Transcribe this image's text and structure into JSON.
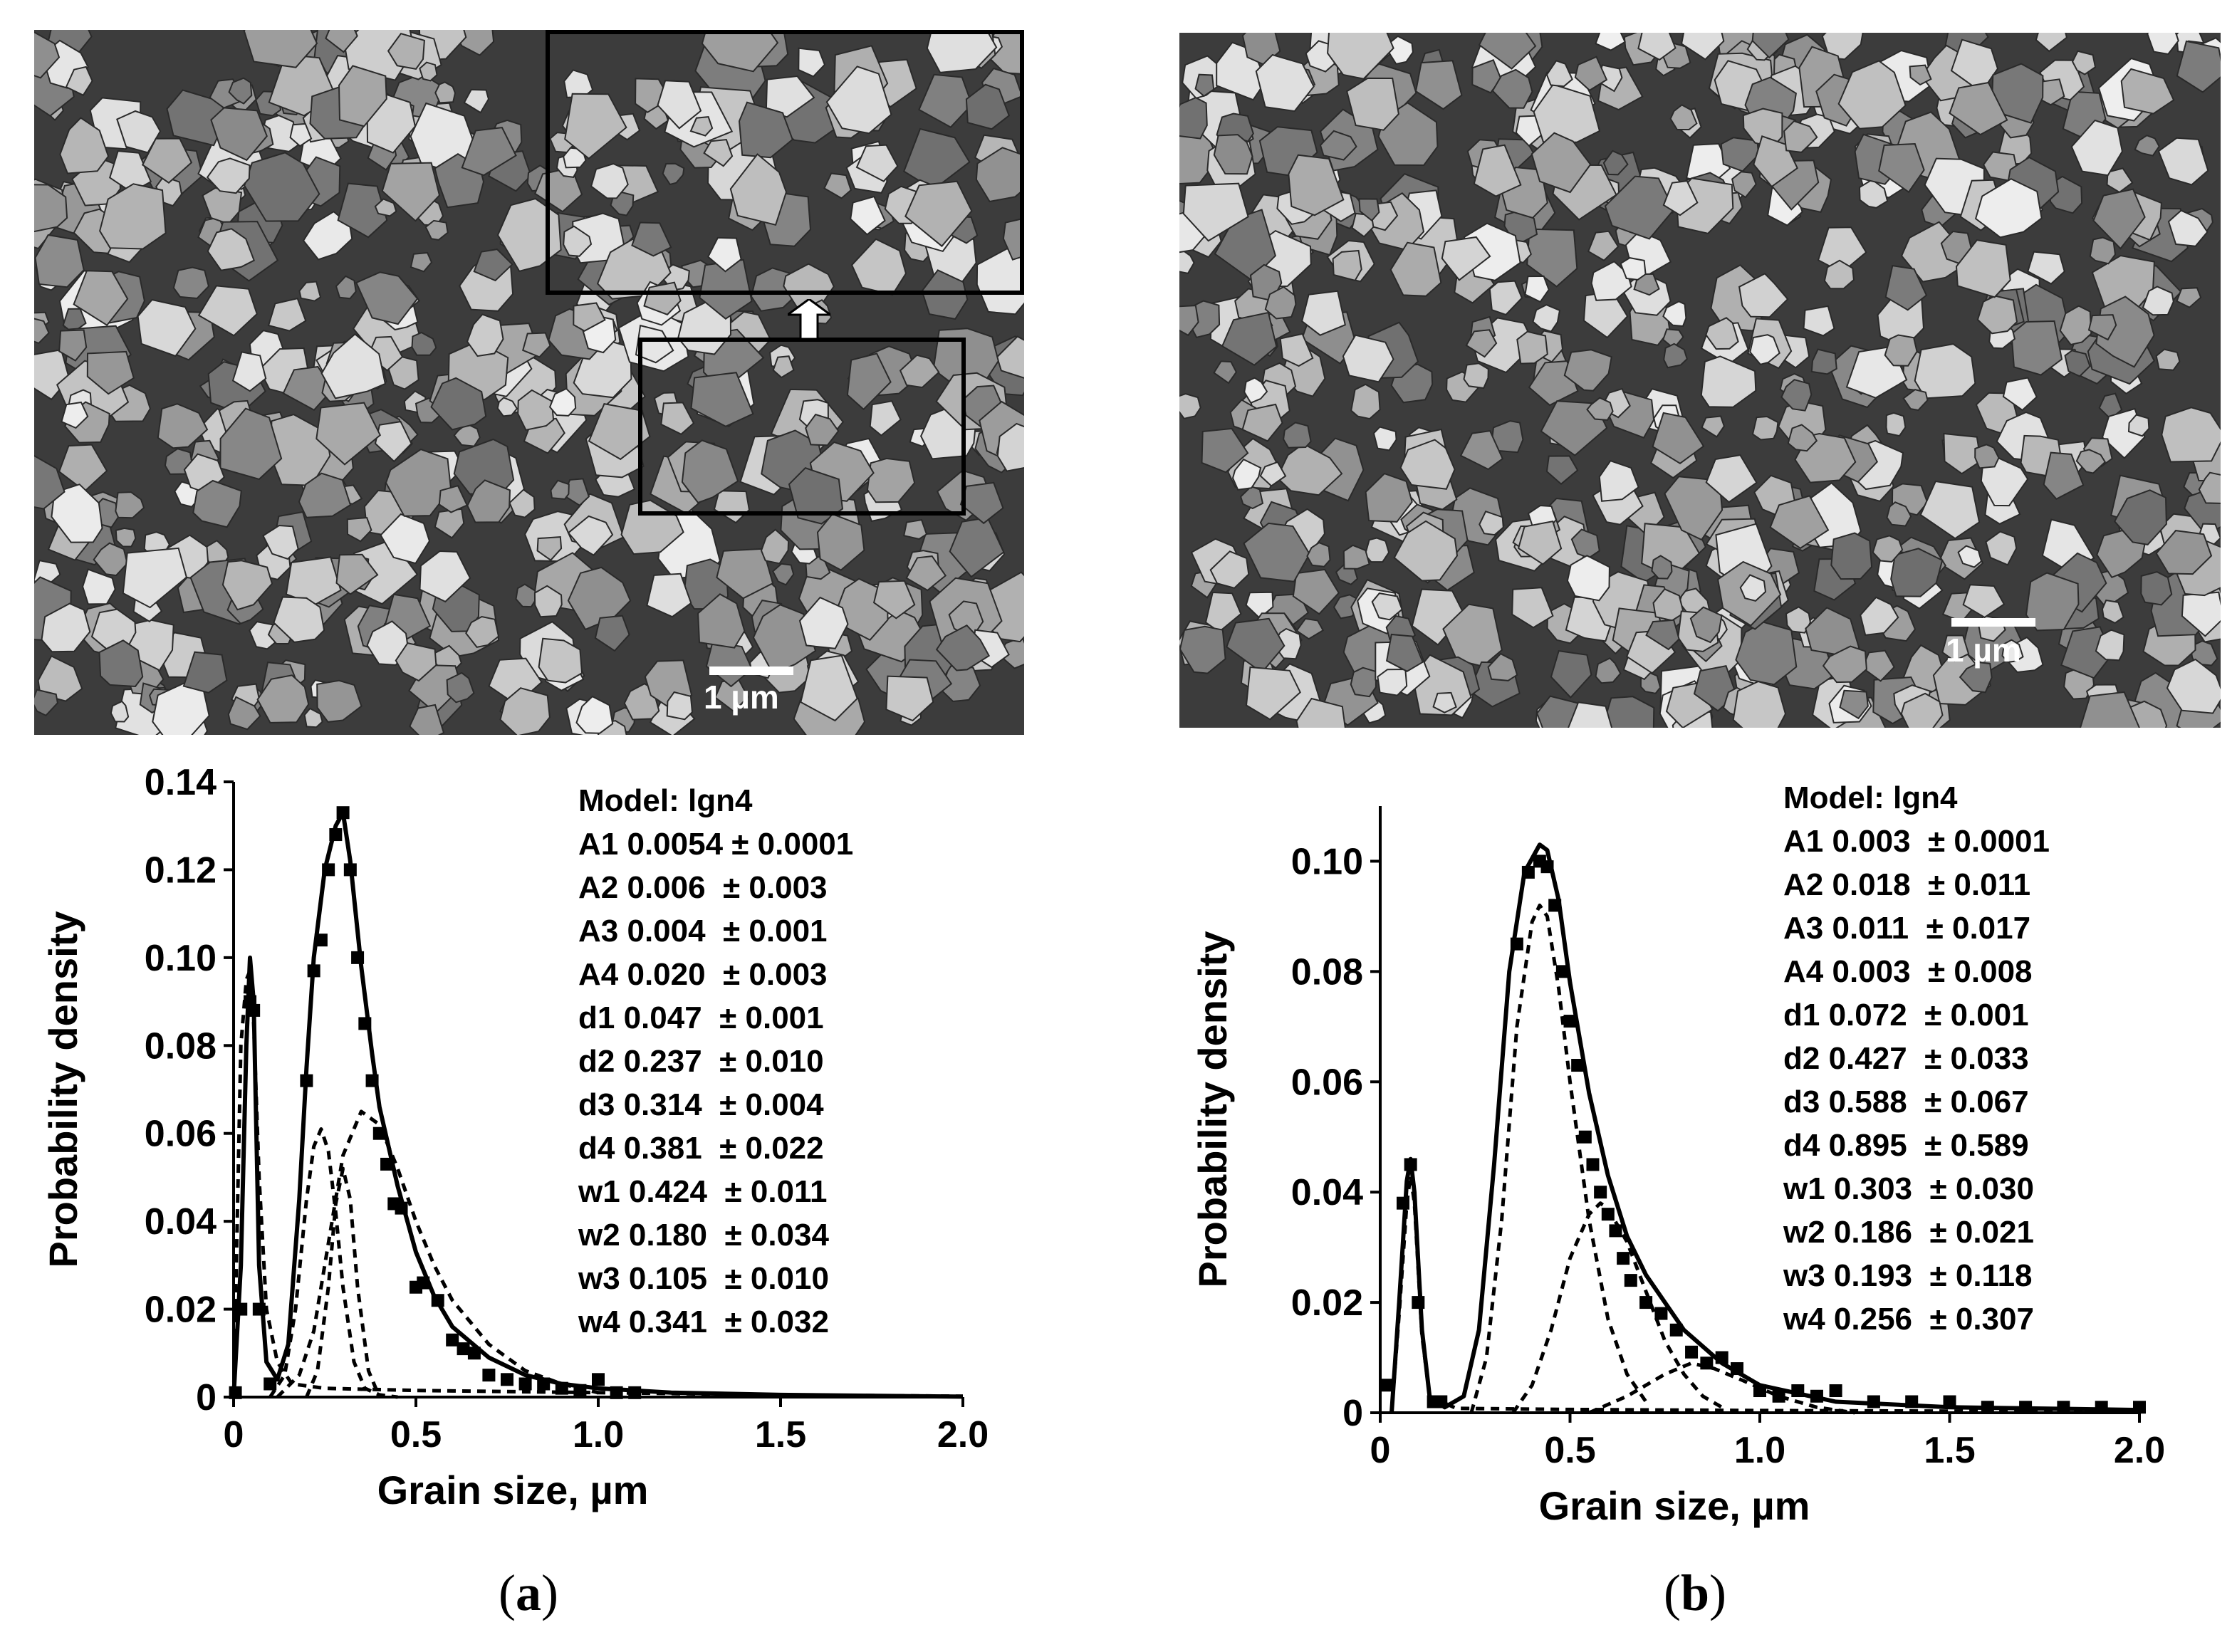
{
  "panels": [
    {
      "id": "a",
      "caption_letter": "a",
      "scale_bar_label": "1 µm",
      "model_params": [
        "Model: lgn4",
        "A1 0.0054 ± 0.0001",
        "A2 0.006  ± 0.003",
        "A3 0.004  ± 0.001",
        "A4 0.020  ± 0.003",
        "d1 0.047  ± 0.001",
        "d2 0.237  ± 0.010",
        "d3 0.314  ± 0.004",
        "d4 0.381  ± 0.022",
        "w1 0.424  ± 0.011",
        "w2 0.180  ± 0.034",
        "w3 0.105  ± 0.010",
        "w4 0.341  ± 0.032"
      ]
    },
    {
      "id": "b",
      "caption_letter": "b",
      "scale_bar_label": "1 µm",
      "model_params": [
        "Model: lgn4",
        "A1 0.003  ± 0.0001",
        "A2 0.018  ± 0.011",
        "A3 0.011  ± 0.017",
        "A4 0.003  ± 0.008",
        "d1 0.072  ± 0.001",
        "d2 0.427  ± 0.033",
        "d3 0.588  ± 0.067",
        "d4 0.895  ± 0.589",
        "w1 0.303  ± 0.030",
        "w2 0.186  ± 0.021",
        "w3 0.193  ± 0.118",
        "w4 0.256  ± 0.307"
      ]
    }
  ],
  "chart_data": [
    {
      "type": "scatter",
      "panel": "a",
      "xlabel": "Grain size, µm",
      "ylabel": "Probability density",
      "xlim": [
        0,
        2.0
      ],
      "ylim": [
        0,
        0.14
      ],
      "xticks": [
        0,
        0.5,
        1.0,
        1.5,
        2.0
      ],
      "xtick_labels": [
        "0",
        "0.5",
        "1.0",
        "1.5",
        "2.0"
      ],
      "yticks": [
        0,
        0.02,
        0.04,
        0.06,
        0.08,
        0.1,
        0.12,
        0.14
      ],
      "ytick_labels": [
        "0",
        "0.02",
        "0.04",
        "0.06",
        "0.08",
        "0.10",
        "0.12",
        "0.14"
      ],
      "series": [
        {
          "style": "squares",
          "x": [
            0.005,
            0.02,
            0.045,
            0.055,
            0.07,
            0.1,
            0.2,
            0.22,
            0.24,
            0.26,
            0.28,
            0.3,
            0.32,
            0.34,
            0.36,
            0.38,
            0.4,
            0.42,
            0.44,
            0.46,
            0.5,
            0.52,
            0.56,
            0.6,
            0.63,
            0.66,
            0.7,
            0.75,
            0.8,
            0.85,
            0.9,
            0.95,
            1.0,
            1.05,
            1.1
          ],
          "y": [
            0.001,
            0.02,
            0.09,
            0.088,
            0.02,
            0.003,
            0.072,
            0.097,
            0.104,
            0.12,
            0.128,
            0.133,
            0.12,
            0.1,
            0.085,
            0.072,
            0.06,
            0.053,
            0.044,
            0.043,
            0.025,
            0.026,
            0.022,
            0.013,
            0.011,
            0.01,
            0.005,
            0.004,
            0.003,
            0.003,
            0.002,
            0.0015,
            0.004,
            0.001,
            0.001
          ]
        },
        {
          "style": "solid",
          "x": [
            0,
            0.02,
            0.035,
            0.045,
            0.055,
            0.07,
            0.09,
            0.12,
            0.15,
            0.18,
            0.2,
            0.22,
            0.25,
            0.28,
            0.3,
            0.32,
            0.35,
            0.38,
            0.4,
            0.45,
            0.5,
            0.55,
            0.6,
            0.7,
            0.8,
            0.9,
            1.0,
            1.2,
            1.5,
            2.0
          ],
          "y": [
            0.0,
            0.03,
            0.08,
            0.1,
            0.09,
            0.03,
            0.008,
            0.004,
            0.012,
            0.045,
            0.075,
            0.1,
            0.12,
            0.13,
            0.133,
            0.122,
            0.098,
            0.078,
            0.066,
            0.048,
            0.033,
            0.023,
            0.016,
            0.009,
            0.005,
            0.003,
            0.002,
            0.001,
            0.0005,
            0.0001
          ]
        },
        {
          "style": "dashed",
          "x": [
            0,
            0.01,
            0.02,
            0.035,
            0.045,
            0.055,
            0.07,
            0.09,
            0.12,
            0.16,
            0.25,
            0.5,
            1.0,
            1.5,
            2.0
          ],
          "y": [
            0.0,
            0.04,
            0.08,
            0.095,
            0.097,
            0.085,
            0.05,
            0.02,
            0.008,
            0.003,
            0.002,
            0.0015,
            0.001,
            0.0005,
            0.0002
          ]
        },
        {
          "style": "dashed",
          "x": [
            0.1,
            0.14,
            0.17,
            0.2,
            0.22,
            0.24,
            0.26,
            0.28,
            0.3,
            0.33,
            0.36,
            0.4,
            0.45
          ],
          "y": [
            0.0,
            0.005,
            0.02,
            0.045,
            0.057,
            0.061,
            0.056,
            0.042,
            0.025,
            0.008,
            0.002,
            0.0005,
            0.0
          ]
        },
        {
          "style": "dashed",
          "x": [
            0.2,
            0.23,
            0.26,
            0.28,
            0.3,
            0.32,
            0.34,
            0.37,
            0.4
          ],
          "y": [
            0.0,
            0.006,
            0.025,
            0.044,
            0.052,
            0.045,
            0.025,
            0.006,
            0.0
          ]
        },
        {
          "style": "dashed",
          "x": [
            0.12,
            0.18,
            0.22,
            0.26,
            0.3,
            0.35,
            0.4,
            0.45,
            0.5,
            0.55,
            0.6,
            0.7,
            0.8,
            0.9,
            1.0
          ],
          "y": [
            0.0,
            0.005,
            0.015,
            0.035,
            0.055,
            0.065,
            0.062,
            0.052,
            0.04,
            0.03,
            0.022,
            0.012,
            0.006,
            0.003,
            0.001
          ]
        }
      ]
    },
    {
      "type": "scatter",
      "panel": "b",
      "xlabel": "Grain size, µm",
      "ylabel": "Probability density",
      "xlim": [
        0,
        2.0
      ],
      "ylim": [
        0,
        0.11
      ],
      "xticks": [
        0,
        0.5,
        1.0,
        1.5,
        2.0
      ],
      "xtick_labels": [
        "0",
        "0.5",
        "1.0",
        "1.5",
        "2.0"
      ],
      "yticks": [
        0,
        0.02,
        0.04,
        0.06,
        0.08,
        0.1
      ],
      "ytick_labels": [
        "0",
        "0.02",
        "0.04",
        "0.06",
        "0.08",
        "0.10"
      ],
      "series": [
        {
          "style": "squares",
          "x": [
            0.02,
            0.06,
            0.08,
            0.1,
            0.14,
            0.16,
            0.36,
            0.39,
            0.42,
            0.44,
            0.46,
            0.48,
            0.5,
            0.52,
            0.54,
            0.56,
            0.58,
            0.6,
            0.62,
            0.64,
            0.66,
            0.7,
            0.74,
            0.78,
            0.82,
            0.86,
            0.9,
            0.94,
            1.0,
            1.05,
            1.1,
            1.15,
            1.2,
            1.3,
            1.4,
            1.5,
            1.6,
            1.7,
            1.8,
            1.9,
            2.0
          ],
          "y": [
            0.005,
            0.038,
            0.045,
            0.02,
            0.002,
            0.002,
            0.085,
            0.098,
            0.1,
            0.099,
            0.092,
            0.08,
            0.071,
            0.063,
            0.05,
            0.045,
            0.04,
            0.036,
            0.033,
            0.028,
            0.024,
            0.02,
            0.018,
            0.015,
            0.011,
            0.009,
            0.01,
            0.008,
            0.004,
            0.003,
            0.004,
            0.003,
            0.004,
            0.002,
            0.002,
            0.002,
            0.001,
            0.001,
            0.001,
            0.001,
            0.001
          ]
        },
        {
          "style": "solid",
          "x": [
            0.03,
            0.05,
            0.07,
            0.08,
            0.09,
            0.11,
            0.13,
            0.17,
            0.22,
            0.26,
            0.3,
            0.34,
            0.38,
            0.42,
            0.44,
            0.47,
            0.5,
            0.55,
            0.6,
            0.65,
            0.7,
            0.8,
            0.9,
            1.0,
            1.2,
            1.5,
            2.0
          ],
          "y": [
            0.0,
            0.02,
            0.042,
            0.046,
            0.04,
            0.015,
            0.003,
            0.001,
            0.003,
            0.015,
            0.045,
            0.08,
            0.098,
            0.103,
            0.102,
            0.093,
            0.078,
            0.058,
            0.043,
            0.032,
            0.025,
            0.015,
            0.009,
            0.005,
            0.002,
            0.001,
            0.0005
          ]
        },
        {
          "style": "dashed",
          "x": [
            0.03,
            0.05,
            0.07,
            0.08,
            0.09,
            0.11,
            0.13,
            0.2,
            0.5,
            1.0,
            1.5,
            2.0
          ],
          "y": [
            0.0,
            0.018,
            0.038,
            0.043,
            0.038,
            0.014,
            0.003,
            0.0008,
            0.0006,
            0.0004,
            0.0003,
            0.0002
          ]
        },
        {
          "style": "dashed",
          "x": [
            0.24,
            0.28,
            0.32,
            0.36,
            0.4,
            0.42,
            0.44,
            0.47,
            0.5,
            0.55,
            0.6,
            0.65,
            0.7
          ],
          "y": [
            0.0,
            0.01,
            0.035,
            0.07,
            0.089,
            0.092,
            0.09,
            0.077,
            0.06,
            0.035,
            0.017,
            0.007,
            0.002
          ]
        },
        {
          "style": "dashed",
          "x": [
            0.35,
            0.4,
            0.45,
            0.5,
            0.55,
            0.58,
            0.6,
            0.65,
            0.7,
            0.75,
            0.8,
            0.85,
            0.9
          ],
          "y": [
            0.0,
            0.005,
            0.015,
            0.028,
            0.036,
            0.038,
            0.037,
            0.031,
            0.022,
            0.013,
            0.007,
            0.003,
            0.001
          ]
        },
        {
          "style": "dashed",
          "x": [
            0.55,
            0.65,
            0.75,
            0.82,
            0.88,
            0.95,
            1.05,
            1.15,
            1.25
          ],
          "y": [
            0.0,
            0.003,
            0.007,
            0.009,
            0.008,
            0.006,
            0.003,
            0.001,
            0.0
          ]
        }
      ]
    }
  ]
}
